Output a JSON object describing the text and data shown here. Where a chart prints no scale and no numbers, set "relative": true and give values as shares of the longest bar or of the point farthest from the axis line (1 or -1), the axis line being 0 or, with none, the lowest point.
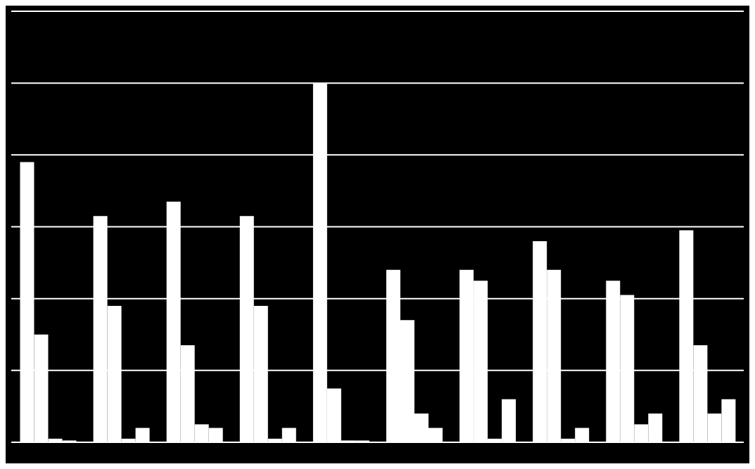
{
  "chart_data": {
    "type": "bar",
    "relative": true,
    "grid": "y",
    "categories": [
      null,
      null,
      null,
      null,
      null,
      null,
      null,
      null,
      null,
      null
    ],
    "series": [
      {
        "color": "#ffffff",
        "values": [
          0.78,
          0.63,
          0.67,
          0.63,
          1,
          0.48,
          0.48,
          0.56,
          0.45,
          0.59
        ]
      },
      {
        "color": "#ffffff",
        "values": [
          0.3,
          0.38,
          0.27,
          0.38,
          0.15,
          0.34,
          0.45,
          0.48,
          0.41,
          0.27
        ]
      },
      {
        "color": "#ffffff",
        "values": [
          0.01,
          0.01,
          0.05,
          0.01,
          0.005,
          0.08,
          0.01,
          0.01,
          0.05,
          0.08
        ]
      },
      {
        "color": "#ffffff",
        "values": [
          0.005,
          0.04,
          0.04,
          0.04,
          0.005,
          0.04,
          0.12,
          0.04,
          0.08,
          0.12
        ]
      }
    ]
  }
}
